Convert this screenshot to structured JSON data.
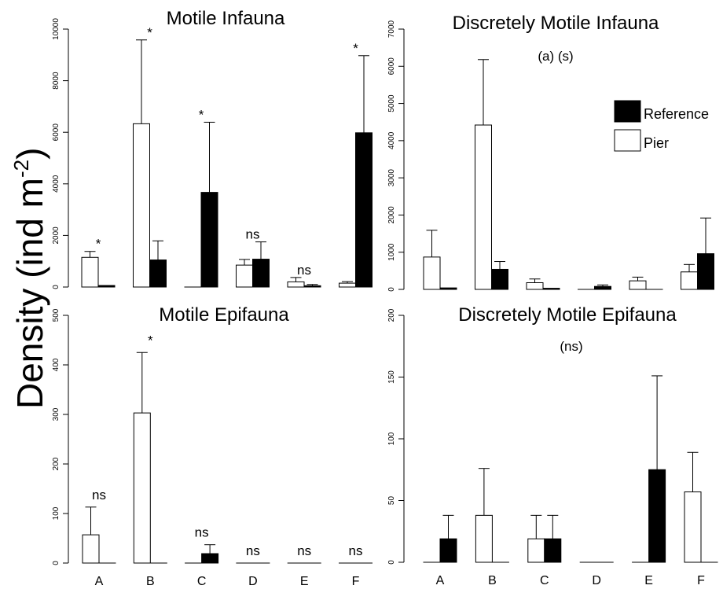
{
  "figure": {
    "ylabel": "Density (ind m",
    "ylabel_exp": "-2",
    "ylabel_close": ")"
  },
  "legend": {
    "position": "top-right of panel 2",
    "items": [
      {
        "label": "Reference",
        "fill": "#000000"
      },
      {
        "label": "Pier",
        "fill": "#ffffff"
      }
    ]
  },
  "chart_data": [
    {
      "type": "bar",
      "title": "Motile Infauna",
      "subtitle": "",
      "categories": [
        "A",
        "B",
        "C",
        "D",
        "E",
        "F"
      ],
      "ylim": [
        0,
        10000
      ],
      "yticks": [
        0,
        2000,
        4000,
        6000,
        8000,
        10000
      ],
      "series": [
        {
          "name": "Pier",
          "values": [
            1150,
            6330,
            0,
            850,
            200,
            150
          ],
          "errors": [
            230,
            3250,
            0,
            220,
            170,
            60
          ]
        },
        {
          "name": "Reference",
          "values": [
            60,
            1050,
            3670,
            1080,
            50,
            5980
          ],
          "errors": [
            0,
            740,
            2720,
            670,
            50,
            2990
          ]
        }
      ],
      "annotations": [
        "*",
        "*",
        "*",
        "ns",
        "ns",
        "*"
      ],
      "show_xticklabels": false
    },
    {
      "type": "bar",
      "title": "Discretely Motile Infauna",
      "subtitle": "(a) (s)",
      "categories": [
        "A",
        "B",
        "C",
        "D",
        "E",
        "F"
      ],
      "ylim": [
        0,
        7000
      ],
      "yticks": [
        0,
        1000,
        2000,
        3000,
        4000,
        5000,
        6000,
        7000
      ],
      "series": [
        {
          "name": "Pier",
          "values": [
            870,
            4420,
            180,
            0,
            230,
            470
          ],
          "errors": [
            720,
            1760,
            100,
            0,
            100,
            200
          ]
        },
        {
          "name": "Reference",
          "values": [
            40,
            540,
            30,
            80,
            0,
            960
          ],
          "errors": [
            0,
            210,
            0,
            40,
            0,
            960
          ]
        }
      ],
      "annotations": [
        "",
        "",
        "",
        "",
        "",
        ""
      ],
      "show_xticklabels": false
    },
    {
      "type": "bar",
      "title": "Motile Epifauna",
      "subtitle": "",
      "categories": [
        "A",
        "B",
        "C",
        "D",
        "E",
        "F"
      ],
      "ylim": [
        0,
        500
      ],
      "yticks": [
        0,
        100,
        200,
        300,
        400,
        500
      ],
      "series": [
        {
          "name": "Pier",
          "values": [
            57,
            303,
            0,
            0,
            0,
            0
          ],
          "errors": [
            56,
            122,
            0,
            0,
            0,
            0
          ]
        },
        {
          "name": "Reference",
          "values": [
            0,
            0,
            19,
            0,
            0,
            0
          ],
          "errors": [
            0,
            0,
            18,
            0,
            0,
            0
          ]
        }
      ],
      "annotations": [
        "ns",
        "*",
        "ns",
        "ns",
        "ns",
        "ns"
      ],
      "show_xticklabels": true
    },
    {
      "type": "bar",
      "title": "Discretely Motile Epifauna",
      "subtitle": "(ns)",
      "categories": [
        "A",
        "B",
        "C",
        "D",
        "E",
        "F"
      ],
      "ylim": [
        0,
        200
      ],
      "yticks": [
        0,
        50,
        100,
        150,
        200
      ],
      "series": [
        {
          "name": "Pier",
          "values": [
            0,
            38,
            19,
            0,
            0,
            57
          ],
          "errors": [
            0,
            38,
            19,
            0,
            0,
            32
          ]
        },
        {
          "name": "Reference",
          "values": [
            19,
            0,
            19,
            0,
            75,
            0
          ],
          "errors": [
            19,
            0,
            19,
            0,
            76,
            0
          ]
        }
      ],
      "annotations": [
        "",
        "",
        "",
        "",
        "",
        ""
      ],
      "show_xticklabels": true
    }
  ]
}
